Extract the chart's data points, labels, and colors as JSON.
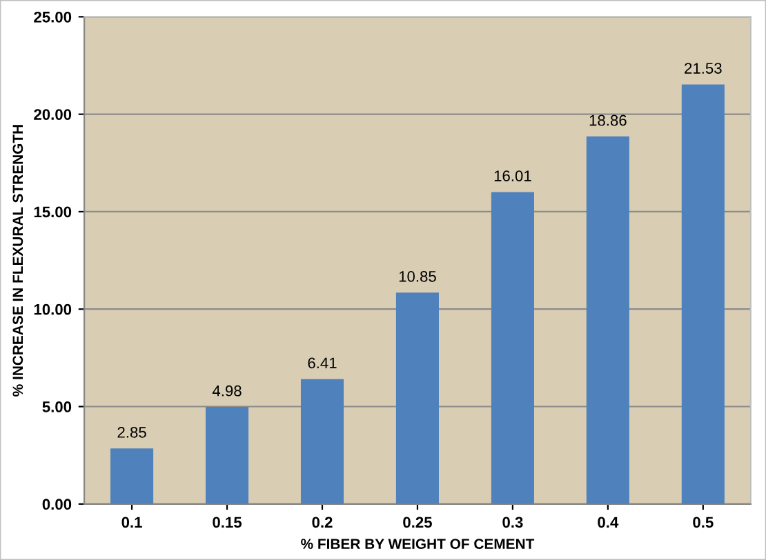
{
  "chart_data": {
    "type": "bar",
    "xlabel": "% FIBER BY WEIGHT OF CEMENT",
    "ylabel": "% INCREASE IN FLEXURAL STRENGTH",
    "categories": [
      "0.1",
      "0.15",
      "0.2",
      "0.25",
      "0.3",
      "0.4",
      "0.5"
    ],
    "values": [
      2.85,
      4.98,
      6.41,
      10.85,
      16.01,
      18.86,
      21.53
    ],
    "color": "#4f81bd",
    "ylim": [
      0,
      25
    ],
    "yticks": [
      {
        "value": 0,
        "label": "0.00"
      },
      {
        "value": 5,
        "label": "5.00"
      },
      {
        "value": 10,
        "label": "10.00"
      },
      {
        "value": 15,
        "label": "15.00"
      },
      {
        "value": 20,
        "label": "20.00"
      },
      {
        "value": 25,
        "label": "25.00"
      }
    ],
    "grid": "y",
    "data_labels": true
  }
}
